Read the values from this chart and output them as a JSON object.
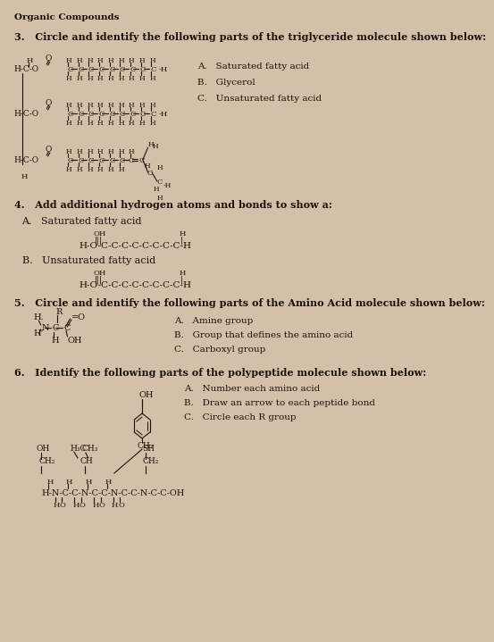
{
  "bg_color": "#d4bfa8",
  "text_color": "#1a1008",
  "title": "Organic Compounds",
  "q3_text": "3.   Circle and identify the following parts of the triglyceride molecule shown below:",
  "q3_options": [
    "A.   Saturated fatty acid",
    "B.   Glycerol",
    "C.   Unsaturated fatty acid"
  ],
  "q4_text": "4.   Add additional hydrogen atoms and bonds to show a:",
  "q4a_label": "A.   Saturated fatty acid",
  "q4b_label": "B.   Unsaturated fatty acid",
  "q5_text": "5.   Circle and identify the following parts of the Amino Acid molecule shown below:",
  "q5_options": [
    "A.   Amine group",
    "B.   Group that defines the amino acid",
    "C.   Carboxyl group"
  ],
  "q6_text": "6.   Identify the following parts of the polypeptide molecule shown below:",
  "q6_options": [
    "A.   Number each amino acid",
    "B.   Draw an arrow to each peptide bond",
    "C.   Circle each R group"
  ],
  "font_family": "serif"
}
